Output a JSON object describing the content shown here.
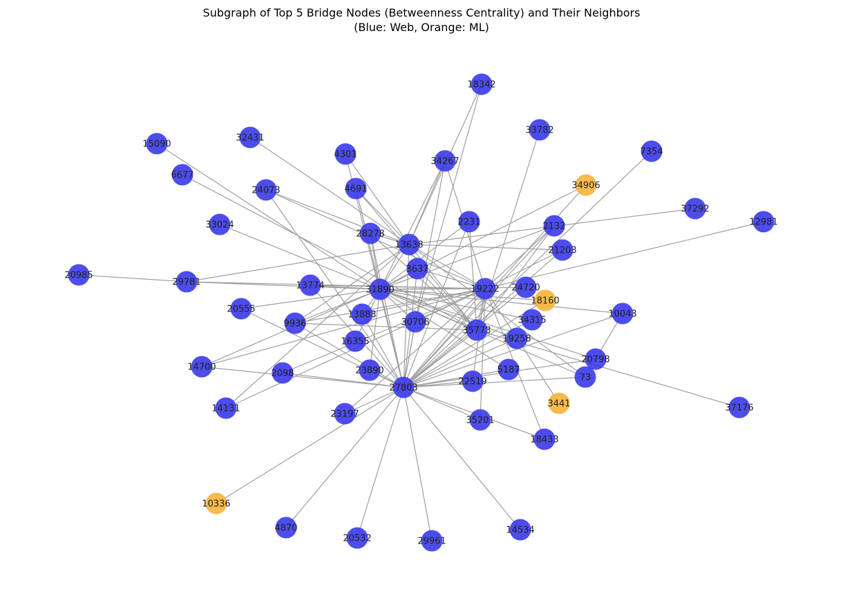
{
  "title": {
    "line1": "Subgraph of Top 5 Bridge Nodes (Betweenness Centrality) and Their Neighbors",
    "line2": "(Blue: Web, Orange: ML)"
  },
  "colors": {
    "web": "#3a3aeb",
    "ml": "#f7b33a",
    "edge": "#9e9e9e"
  },
  "nodes": [
    {
      "id": "18342",
      "group": "web"
    },
    {
      "id": "33782",
      "group": "web"
    },
    {
      "id": "15090",
      "group": "web"
    },
    {
      "id": "32431",
      "group": "web"
    },
    {
      "id": "4301",
      "group": "web"
    },
    {
      "id": "34267",
      "group": "web"
    },
    {
      "id": "7354",
      "group": "web"
    },
    {
      "id": "6677",
      "group": "web"
    },
    {
      "id": "24073",
      "group": "web"
    },
    {
      "id": "4691",
      "group": "web"
    },
    {
      "id": "34906",
      "group": "ml"
    },
    {
      "id": "37292",
      "group": "web"
    },
    {
      "id": "12981",
      "group": "web"
    },
    {
      "id": "33024",
      "group": "web"
    },
    {
      "id": "28278",
      "group": "web"
    },
    {
      "id": "2231",
      "group": "web"
    },
    {
      "id": "2132",
      "group": "web"
    },
    {
      "id": "13638",
      "group": "web"
    },
    {
      "id": "21203",
      "group": "web"
    },
    {
      "id": "20985",
      "group": "web"
    },
    {
      "id": "29781",
      "group": "web"
    },
    {
      "id": "3637",
      "group": "web"
    },
    {
      "id": "13774",
      "group": "web"
    },
    {
      "id": "31890",
      "group": "web"
    },
    {
      "id": "19222",
      "group": "web"
    },
    {
      "id": "24720",
      "group": "web"
    },
    {
      "id": "18160",
      "group": "ml"
    },
    {
      "id": "20555",
      "group": "web"
    },
    {
      "id": "13883",
      "group": "web"
    },
    {
      "id": "10043",
      "group": "web"
    },
    {
      "id": "9936",
      "group": "web"
    },
    {
      "id": "30706",
      "group": "web"
    },
    {
      "id": "34315",
      "group": "web"
    },
    {
      "id": "35773",
      "group": "web"
    },
    {
      "id": "16355",
      "group": "web"
    },
    {
      "id": "19258",
      "group": "web"
    },
    {
      "id": "20798",
      "group": "web"
    },
    {
      "id": "14700",
      "group": "web"
    },
    {
      "id": "2098",
      "group": "web"
    },
    {
      "id": "23890",
      "group": "web"
    },
    {
      "id": "5187",
      "group": "web"
    },
    {
      "id": "73",
      "group": "web"
    },
    {
      "id": "27803",
      "group": "web"
    },
    {
      "id": "22519",
      "group": "web"
    },
    {
      "id": "3441",
      "group": "ml"
    },
    {
      "id": "14131",
      "group": "web"
    },
    {
      "id": "23197",
      "group": "web"
    },
    {
      "id": "37176",
      "group": "web"
    },
    {
      "id": "35201",
      "group": "web"
    },
    {
      "id": "18433",
      "group": "web"
    },
    {
      "id": "10336",
      "group": "ml"
    },
    {
      "id": "4870",
      "group": "web"
    },
    {
      "id": "20532",
      "group": "web"
    },
    {
      "id": "29961",
      "group": "web"
    },
    {
      "id": "14534",
      "group": "web"
    }
  ],
  "edges": [
    [
      "18342",
      "30706"
    ],
    [
      "18342",
      "13638"
    ],
    [
      "33782",
      "35773"
    ],
    [
      "7354",
      "27803"
    ],
    [
      "15090",
      "31890"
    ],
    [
      "32431",
      "13638"
    ],
    [
      "6677",
      "35773"
    ],
    [
      "4301",
      "13638"
    ],
    [
      "4301",
      "27803"
    ],
    [
      "34267",
      "31890"
    ],
    [
      "34267",
      "27803"
    ],
    [
      "34267",
      "19222"
    ],
    [
      "34267",
      "13638"
    ],
    [
      "24073",
      "13638"
    ],
    [
      "24073",
      "27803"
    ],
    [
      "24073",
      "19222"
    ],
    [
      "4691",
      "13638"
    ],
    [
      "4691",
      "31890"
    ],
    [
      "4691",
      "35773"
    ],
    [
      "4691",
      "27803"
    ],
    [
      "34906",
      "31890"
    ],
    [
      "34906",
      "27803"
    ],
    [
      "37292",
      "13638"
    ],
    [
      "12981",
      "19222"
    ],
    [
      "33024",
      "31890"
    ],
    [
      "28278",
      "13638"
    ],
    [
      "28278",
      "31890"
    ],
    [
      "28278",
      "27803"
    ],
    [
      "28278",
      "35773"
    ],
    [
      "2231",
      "27803"
    ],
    [
      "2231",
      "31890"
    ],
    [
      "2231",
      "35773"
    ],
    [
      "2132",
      "31890"
    ],
    [
      "2132",
      "27803"
    ],
    [
      "2132",
      "19222"
    ],
    [
      "2132",
      "35773"
    ],
    [
      "13638",
      "31890"
    ],
    [
      "13638",
      "27803"
    ],
    [
      "13638",
      "19222"
    ],
    [
      "13638",
      "35773"
    ],
    [
      "13638",
      "21203"
    ],
    [
      "21203",
      "19222"
    ],
    [
      "21203",
      "27803"
    ],
    [
      "20985",
      "29781"
    ],
    [
      "29781",
      "31890"
    ],
    [
      "29781",
      "19222"
    ],
    [
      "29781",
      "13638"
    ],
    [
      "3637",
      "31890"
    ],
    [
      "3637",
      "27803"
    ],
    [
      "3637",
      "19222"
    ],
    [
      "3637",
      "35773"
    ],
    [
      "13774",
      "31890"
    ],
    [
      "13774",
      "19222"
    ],
    [
      "13774",
      "27803"
    ],
    [
      "31890",
      "19222"
    ],
    [
      "31890",
      "27803"
    ],
    [
      "31890",
      "35773"
    ],
    [
      "19222",
      "27803"
    ],
    [
      "19222",
      "35773"
    ],
    [
      "24720",
      "27803"
    ],
    [
      "24720",
      "31890"
    ],
    [
      "18160",
      "31890"
    ],
    [
      "18160",
      "27803"
    ],
    [
      "20555",
      "31890"
    ],
    [
      "20555",
      "27803"
    ],
    [
      "13883",
      "31890"
    ],
    [
      "13883",
      "19222"
    ],
    [
      "13883",
      "27803"
    ],
    [
      "10043",
      "31890"
    ],
    [
      "10043",
      "27803"
    ],
    [
      "10043",
      "20798"
    ],
    [
      "9936",
      "31890"
    ],
    [
      "9936",
      "19222"
    ],
    [
      "9936",
      "13638"
    ],
    [
      "9936",
      "35773"
    ],
    [
      "9936",
      "27803"
    ],
    [
      "30706",
      "31890"
    ],
    [
      "30706",
      "19222"
    ],
    [
      "30706",
      "27803"
    ],
    [
      "34315",
      "31890"
    ],
    [
      "34315",
      "27803"
    ],
    [
      "35773",
      "27803"
    ],
    [
      "16355",
      "31890"
    ],
    [
      "19258",
      "31890"
    ],
    [
      "19258",
      "27803"
    ],
    [
      "20798",
      "31890"
    ],
    [
      "20798",
      "27803"
    ],
    [
      "14700",
      "31890"
    ],
    [
      "14700",
      "19222"
    ],
    [
      "14700",
      "27803"
    ],
    [
      "2098",
      "27803"
    ],
    [
      "2098",
      "19222"
    ],
    [
      "23890",
      "31890"
    ],
    [
      "23890",
      "27803"
    ],
    [
      "5187",
      "31890"
    ],
    [
      "5187",
      "27803"
    ],
    [
      "73",
      "31890"
    ],
    [
      "73",
      "27803"
    ],
    [
      "73",
      "13638"
    ],
    [
      "22519",
      "19222"
    ],
    [
      "22519",
      "27803"
    ],
    [
      "3441",
      "19222"
    ],
    [
      "14131",
      "13638"
    ],
    [
      "14131",
      "19222"
    ],
    [
      "23197",
      "19222"
    ],
    [
      "23197",
      "27803"
    ],
    [
      "37176",
      "35773"
    ],
    [
      "35201",
      "27803"
    ],
    [
      "35201",
      "19222"
    ],
    [
      "18433",
      "27803"
    ],
    [
      "18433",
      "19222"
    ],
    [
      "10336",
      "27803"
    ],
    [
      "4870",
      "27803"
    ],
    [
      "20532",
      "27803"
    ],
    [
      "29961",
      "27803"
    ],
    [
      "14534",
      "27803"
    ]
  ]
}
